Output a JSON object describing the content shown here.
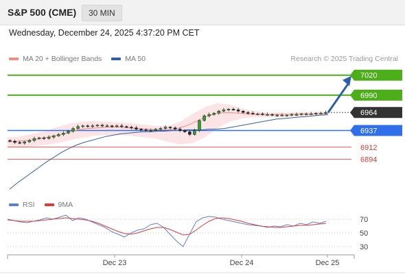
{
  "header": {
    "title": "S&P 500 (CME)",
    "timeframe": "30 MIN"
  },
  "datetime": "Wednesday, December 24, 2025 4:37:20 PM CET",
  "legend": {
    "main": [
      {
        "label": "MA 20 + Bollinger Bands",
        "color": "#f28b82"
      },
      {
        "label": "MA 50",
        "color": "#2f5fa8"
      }
    ],
    "rsi": [
      {
        "label": "RSI",
        "color": "#5b7fd6"
      },
      {
        "label": "9MA",
        "color": "#e53935"
      }
    ]
  },
  "research": "Research © 2025 Trading Central",
  "chart_data": [
    {
      "type": "candlestick",
      "ylim": [
        6845,
        7030
      ],
      "current_price": 6964,
      "levels": [
        {
          "value": 7020,
          "kind": "resistance",
          "label": "7020",
          "color": "#4caf1a"
        },
        {
          "value": 6990,
          "kind": "resistance",
          "label": "6990",
          "color": "#4caf1a"
        },
        {
          "value": 6937,
          "kind": "pivot",
          "label": "6937",
          "color": "#2f6fea"
        },
        {
          "value": 6912,
          "kind": "support",
          "label": "6912",
          "color": "#e05555"
        },
        {
          "value": 6894,
          "kind": "support",
          "label": "6894",
          "color": "#e05555"
        }
      ],
      "current_label": "6964",
      "forecast_arrow": {
        "from": 6964,
        "to": 7020
      },
      "x_ticks": [
        "Dec 23",
        "Dec 24",
        "Dec 25"
      ],
      "close_path": [
        6921,
        6919,
        6918,
        6920,
        6922,
        6925,
        6926,
        6925,
        6927,
        6929,
        6931,
        6933,
        6936,
        6940,
        6943,
        6944,
        6943,
        6944,
        6945,
        6944,
        6944,
        6943,
        6944,
        6943,
        6942,
        6941,
        6939,
        6938,
        6937,
        6937,
        6939,
        6940,
        6942,
        6941,
        6939,
        6937,
        6935,
        6931,
        6937,
        6952,
        6959,
        6961,
        6963,
        6966,
        6968,
        6969,
        6968,
        6966,
        6964,
        6963,
        6962,
        6962,
        6961,
        6961,
        6960,
        6960,
        6960,
        6960,
        6961,
        6961,
        6962,
        6962,
        6962,
        6963,
        6963,
        6964
      ],
      "ma50_path": [
        6849,
        6858,
        6866,
        6874,
        6882,
        6890,
        6897,
        6904,
        6910,
        6915,
        6919,
        6922,
        6925,
        6928,
        6930,
        6932,
        6933,
        6934,
        6935,
        6935,
        6936,
        6936,
        6937,
        6937,
        6938,
        6938,
        6938,
        6939,
        6939,
        6940,
        6942,
        6944,
        6946,
        6948,
        6950,
        6952,
        6954,
        6955,
        6956,
        6957,
        6958,
        6959,
        6960,
        6961
      ],
      "ma20_path": [
        6920,
        6921,
        6922,
        6924,
        6927,
        6930,
        6934,
        6938,
        6940,
        6941,
        6942,
        6942,
        6941,
        6940,
        6939,
        6938,
        6938,
        6940,
        6945,
        6952,
        6959,
        6963,
        6964,
        6963,
        6962,
        6961,
        6961,
        6961,
        6961,
        6962,
        6962,
        6962,
        6963
      ],
      "bollinger_upper": [
        6926,
        6928,
        6932,
        6936,
        6942,
        6947,
        6950,
        6951,
        6950,
        6949,
        6948,
        6946,
        6944,
        6944,
        6950,
        6962,
        6972,
        6978,
        6976,
        6970,
        6966,
        6964,
        6964,
        6964,
        6964,
        6965,
        6966
      ],
      "bollinger_lower": [
        6912,
        6912,
        6913,
        6915,
        6918,
        6922,
        6926,
        6929,
        6930,
        6930,
        6929,
        6927,
        6925,
        6920,
        6916,
        6918,
        6927,
        6940,
        6950,
        6955,
        6957,
        6957,
        6957,
        6958,
        6958,
        6959,
        6959
      ]
    },
    {
      "type": "line",
      "title": "RSI",
      "ylim": [
        20,
        80
      ],
      "y_ticks": [
        70,
        50,
        30
      ],
      "series": [
        {
          "name": "RSI",
          "values": [
            70,
            68,
            66,
            65,
            67,
            69,
            72,
            70,
            73,
            76,
            68,
            72,
            70,
            66,
            62,
            58,
            52,
            48,
            44,
            50,
            54,
            56,
            62,
            64,
            58,
            48,
            38,
            30,
            48,
            66,
            72,
            74,
            73,
            70,
            68,
            66,
            64,
            62,
            61,
            60,
            58,
            60,
            59,
            62,
            60,
            64,
            62,
            66,
            64,
            67
          ]
        },
        {
          "name": "9MA",
          "values": [
            69,
            68,
            67,
            67,
            67,
            68,
            69,
            70,
            71,
            72,
            71,
            70,
            69,
            67,
            64,
            60,
            56,
            52,
            49,
            48,
            50,
            53,
            56,
            58,
            58,
            55,
            51,
            47,
            48,
            54,
            61,
            67,
            71,
            72,
            71,
            69,
            67,
            64,
            62,
            60,
            59,
            58,
            58,
            59,
            60,
            61,
            61,
            62,
            63,
            64
          ]
        }
      ]
    }
  ]
}
